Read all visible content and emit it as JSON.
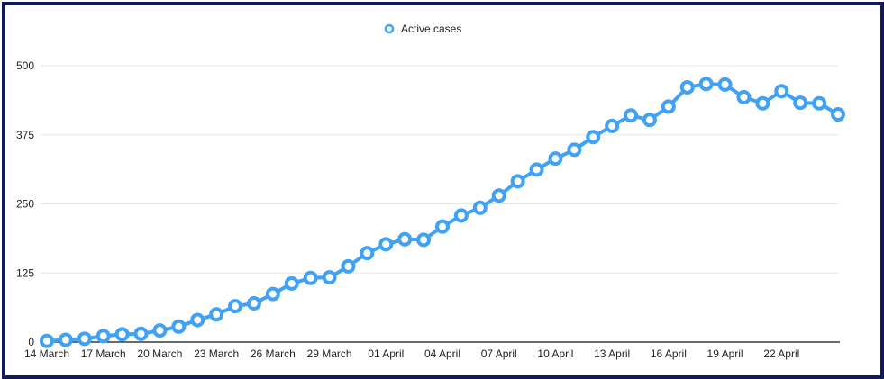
{
  "chart_data": {
    "type": "line",
    "title": "",
    "xlabel": "",
    "ylabel": "",
    "legend": {
      "position": "top-center",
      "entries": [
        "Active cases"
      ]
    },
    "ylim": [
      0,
      500
    ],
    "yticks": [
      0,
      125,
      250,
      375,
      500
    ],
    "grid": true,
    "x_tick_labels": [
      "14 March",
      "17 March",
      "20 March",
      "23 March",
      "26 March",
      "29 March",
      "01 April",
      "04 April",
      "07 April",
      "10 April",
      "13 April",
      "16 April",
      "19 April",
      "22 April"
    ],
    "series": [
      {
        "name": "Active cases",
        "color": "#3fa2f7",
        "values": [
          2,
          4,
          6,
          11,
          14,
          15,
          21,
          28,
          40,
          50,
          65,
          70,
          87,
          106,
          116,
          117,
          137,
          161,
          177,
          186,
          185,
          209,
          229,
          243,
          265,
          291,
          312,
          332,
          348,
          371,
          391,
          410,
          402,
          426,
          461,
          467,
          466,
          443,
          432,
          454,
          433,
          432,
          412
        ]
      }
    ]
  }
}
